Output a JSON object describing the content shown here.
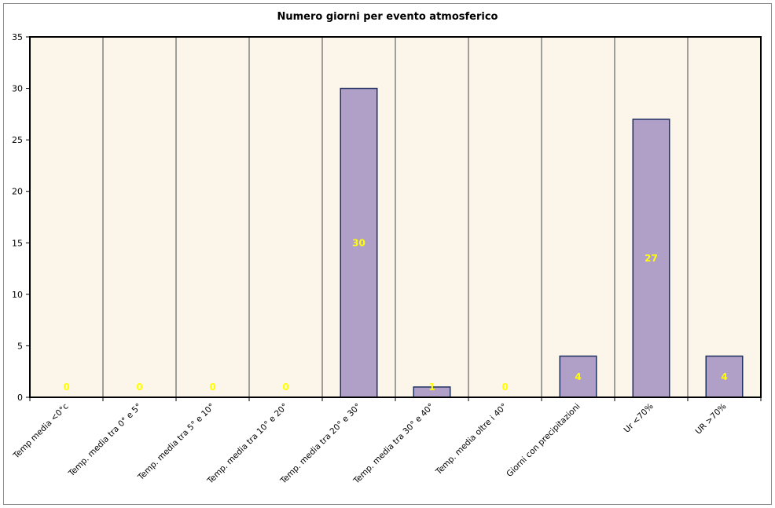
{
  "chart_data": {
    "type": "bar",
    "title": "Numero giorni per evento atmosferico",
    "xlabel": "",
    "ylabel": "",
    "ylim": [
      0,
      35
    ],
    "yticks": [
      0,
      5,
      10,
      15,
      20,
      25,
      30,
      35
    ],
    "grid": "vertical category separators",
    "categories": [
      "Temp media <0°c",
      "Temp. media tra 0° e 5°",
      "Temp. media tra 5° e 10°",
      "Temp. media tra 10° e 20°",
      "Temp. media tra 20° e 30°",
      "Temp. media tra 30° e 40°",
      "Temp. media oltre i 40°",
      "Giorni con precipitazioni",
      "Ur <70%",
      "UR >70%"
    ],
    "values": [
      0,
      0,
      0,
      0,
      30,
      1,
      0,
      4,
      27,
      4
    ],
    "colors": {
      "bar_fill": "#b0a0c8",
      "bar_stroke": "#1f2f5f",
      "plot_bg": "#fcf6ea",
      "data_label": "#ffff00",
      "grid": "#808080"
    }
  }
}
